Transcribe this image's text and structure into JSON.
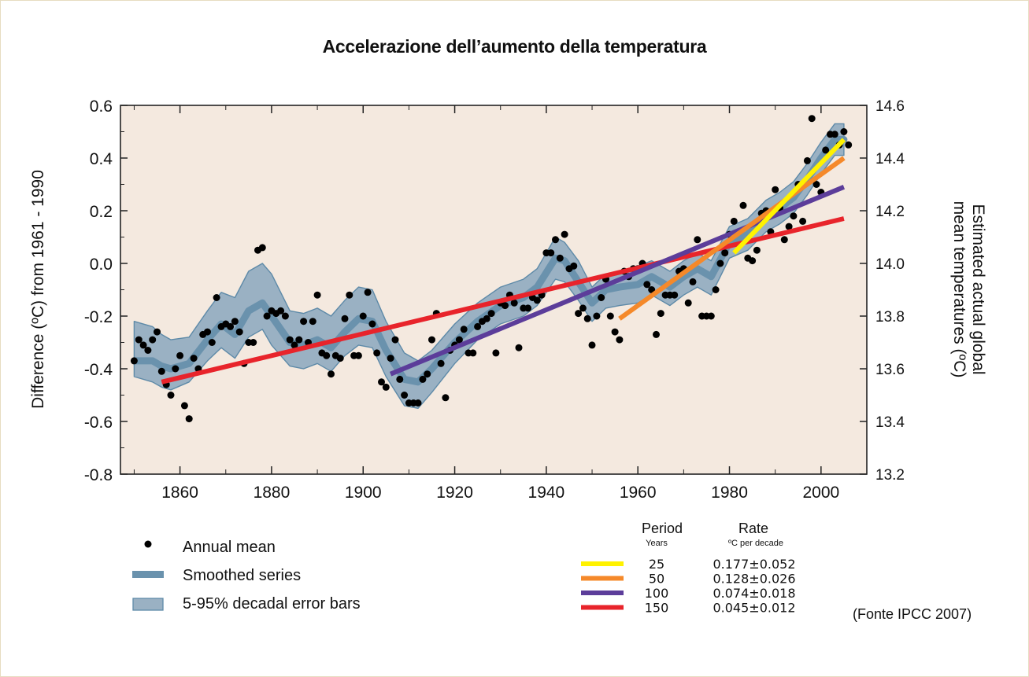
{
  "title": "Accelerazione dell’aumento della temperatura",
  "source_note": "(Fonte IPCC 2007)",
  "chart_data": {
    "type": "scatter",
    "ylabel": "Difference (ºC) from 1961 - 1990",
    "y2label_line1": "Estimated actual global",
    "y2label_line2": "mean temperatures (ºC)",
    "xlim": [
      1847,
      2010
    ],
    "ylim": [
      -0.8,
      0.6
    ],
    "y2lim": [
      13.2,
      14.6
    ],
    "x_ticks": [
      1860,
      1880,
      1900,
      1920,
      1940,
      1960,
      1980,
      2000
    ],
    "y_ticks": [
      "0.6",
      "0.4",
      "0.2",
      "0.0",
      "-0.2",
      "-0.4",
      "-0.6",
      "-0.8"
    ],
    "y2_ticks": [
      "14.6",
      "14.4",
      "14.2",
      "14.0",
      "13.8",
      "13.6",
      "13.4",
      "13.2"
    ],
    "plot_background": "#f4e9df",
    "series": [
      {
        "name": "Annual mean",
        "kind": "points",
        "color": "#000000",
        "x": [
          1850,
          1851,
          1852,
          1853,
          1854,
          1855,
          1856,
          1857,
          1858,
          1859,
          1860,
          1861,
          1862,
          1863,
          1864,
          1865,
          1866,
          1867,
          1868,
          1869,
          1870,
          1871,
          1872,
          1873,
          1874,
          1875,
          1876,
          1877,
          1878,
          1879,
          1880,
          1881,
          1882,
          1883,
          1884,
          1885,
          1886,
          1887,
          1888,
          1889,
          1890,
          1891,
          1892,
          1893,
          1894,
          1895,
          1896,
          1897,
          1898,
          1899,
          1900,
          1901,
          1902,
          1903,
          1904,
          1905,
          1906,
          1907,
          1908,
          1909,
          1910,
          1911,
          1912,
          1913,
          1914,
          1915,
          1916,
          1917,
          1918,
          1919,
          1920,
          1921,
          1922,
          1923,
          1924,
          1925,
          1926,
          1927,
          1928,
          1929,
          1930,
          1931,
          1932,
          1933,
          1934,
          1935,
          1936,
          1937,
          1938,
          1939,
          1940,
          1941,
          1942,
          1943,
          1944,
          1945,
          1946,
          1947,
          1948,
          1949,
          1950,
          1951,
          1952,
          1953,
          1954,
          1955,
          1956,
          1957,
          1958,
          1959,
          1960,
          1961,
          1962,
          1963,
          1964,
          1965,
          1966,
          1967,
          1968,
          1969,
          1970,
          1971,
          1972,
          1973,
          1974,
          1975,
          1976,
          1977,
          1978,
          1979,
          1980,
          1981,
          1982,
          1983,
          1984,
          1985,
          1986,
          1987,
          1988,
          1989,
          1990,
          1991,
          1992,
          1993,
          1994,
          1995,
          1996,
          1997,
          1998,
          1999,
          2000,
          2001,
          2002,
          2003,
          2004,
          2005,
          2006
        ],
        "y": [
          -0.37,
          -0.29,
          -0.31,
          -0.33,
          -0.29,
          -0.26,
          -0.41,
          -0.46,
          -0.5,
          -0.4,
          -0.35,
          -0.54,
          -0.59,
          -0.36,
          -0.4,
          -0.27,
          -0.26,
          -0.3,
          -0.13,
          -0.24,
          -0.23,
          -0.24,
          -0.22,
          -0.26,
          -0.38,
          -0.3,
          -0.3,
          0.05,
          0.06,
          -0.2,
          -0.18,
          -0.19,
          -0.18,
          -0.2,
          -0.29,
          -0.31,
          -0.29,
          -0.22,
          -0.3,
          -0.22,
          -0.12,
          -0.34,
          -0.35,
          -0.42,
          -0.35,
          -0.36,
          -0.21,
          -0.12,
          -0.35,
          -0.35,
          -0.2,
          -0.11,
          -0.23,
          -0.34,
          -0.45,
          -0.47,
          -0.36,
          -0.29,
          -0.44,
          -0.5,
          -0.53,
          -0.53,
          -0.53,
          -0.44,
          -0.42,
          -0.29,
          -0.19,
          -0.38,
          -0.51,
          -0.33,
          -0.31,
          -0.29,
          -0.25,
          -0.34,
          -0.34,
          -0.24,
          -0.22,
          -0.21,
          -0.19,
          -0.34,
          -0.15,
          -0.16,
          -0.12,
          -0.15,
          -0.32,
          -0.17,
          -0.17,
          -0.13,
          -0.14,
          -0.12,
          0.04,
          0.04,
          0.09,
          0.02,
          0.11,
          -0.02,
          -0.01,
          -0.19,
          -0.17,
          -0.21,
          -0.31,
          -0.2,
          -0.13,
          -0.06,
          -0.2,
          -0.26,
          -0.29,
          -0.03,
          -0.05,
          -0.02,
          -0.02,
          0.0,
          -0.08,
          -0.1,
          -0.27,
          -0.19,
          -0.12,
          -0.12,
          -0.12,
          -0.03,
          -0.02,
          -0.15,
          -0.07,
          0.09,
          -0.2,
          -0.2,
          -0.2,
          -0.1,
          0.0,
          0.04,
          0.11,
          0.16,
          0.12,
          0.22,
          0.02,
          0.01,
          0.05,
          0.19,
          0.2,
          0.12,
          0.28,
          0.21,
          0.09,
          0.14,
          0.18,
          0.3,
          0.16,
          0.39,
          0.55,
          0.3,
          0.27,
          0.43,
          0.49,
          0.49,
          0.45,
          0.5,
          0.45
        ]
      },
      {
        "name": "Smoothed series",
        "kind": "line",
        "color": "#6a92ad",
        "x": [
          1850,
          1854,
          1856,
          1858,
          1862,
          1866,
          1869,
          1872,
          1875,
          1878,
          1880,
          1884,
          1887,
          1890,
          1893,
          1896,
          1899,
          1902,
          1905,
          1909,
          1912,
          1915,
          1920,
          1925,
          1930,
          1935,
          1938,
          1942,
          1944,
          1947,
          1950,
          1953,
          1956,
          1960,
          1963,
          1967,
          1970,
          1973,
          1976,
          1980,
          1984,
          1988,
          1991,
          1994,
          1997,
          2000,
          2003,
          2005
        ],
        "y": [
          -0.37,
          -0.37,
          -0.39,
          -0.4,
          -0.38,
          -0.29,
          -0.23,
          -0.27,
          -0.18,
          -0.15,
          -0.2,
          -0.3,
          -0.31,
          -0.29,
          -0.32,
          -0.26,
          -0.21,
          -0.22,
          -0.33,
          -0.44,
          -0.45,
          -0.4,
          -0.3,
          -0.22,
          -0.16,
          -0.13,
          -0.09,
          0.02,
          0.01,
          -0.07,
          -0.15,
          -0.1,
          -0.09,
          -0.08,
          -0.05,
          -0.09,
          -0.05,
          -0.02,
          -0.05,
          0.08,
          0.11,
          0.18,
          0.21,
          0.25,
          0.32,
          0.4,
          0.47,
          0.47
        ]
      },
      {
        "name": "5-95% decadal error bars",
        "kind": "band",
        "color": "#9ab1c3",
        "edge_color": "#5e8aa8",
        "x": [
          1850,
          1854,
          1856,
          1858,
          1862,
          1866,
          1869,
          1872,
          1875,
          1878,
          1880,
          1884,
          1887,
          1890,
          1893,
          1896,
          1899,
          1902,
          1905,
          1909,
          1912,
          1915,
          1920,
          1925,
          1930,
          1935,
          1938,
          1942,
          1944,
          1947,
          1950,
          1953,
          1956,
          1960,
          1963,
          1967,
          1970,
          1973,
          1976,
          1980,
          1984,
          1988,
          1991,
          1994,
          1997,
          2000,
          2003,
          2005
        ],
        "upper": [
          -0.22,
          -0.24,
          -0.27,
          -0.29,
          -0.28,
          -0.18,
          -0.11,
          -0.13,
          -0.03,
          0.0,
          -0.04,
          -0.18,
          -0.19,
          -0.17,
          -0.2,
          -0.14,
          -0.09,
          -0.1,
          -0.22,
          -0.34,
          -0.37,
          -0.33,
          -0.23,
          -0.15,
          -0.09,
          -0.06,
          -0.02,
          0.1,
          0.08,
          0.01,
          -0.09,
          -0.04,
          -0.03,
          -0.01,
          0.01,
          -0.03,
          0.01,
          0.04,
          0.01,
          0.14,
          0.17,
          0.24,
          0.27,
          0.31,
          0.38,
          0.46,
          0.53,
          0.53
        ],
        "lower": [
          -0.43,
          -0.45,
          -0.47,
          -0.48,
          -0.45,
          -0.37,
          -0.32,
          -0.36,
          -0.28,
          -0.25,
          -0.31,
          -0.39,
          -0.4,
          -0.38,
          -0.41,
          -0.35,
          -0.31,
          -0.32,
          -0.43,
          -0.54,
          -0.55,
          -0.49,
          -0.38,
          -0.29,
          -0.23,
          -0.2,
          -0.16,
          -0.06,
          -0.07,
          -0.14,
          -0.22,
          -0.17,
          -0.16,
          -0.15,
          -0.12,
          -0.16,
          -0.12,
          -0.09,
          -0.12,
          0.02,
          0.05,
          0.12,
          0.15,
          0.19,
          0.26,
          0.34,
          0.41,
          0.41
        ]
      },
      {
        "name": "150",
        "kind": "trend",
        "color": "#e8242b",
        "x": [
          1856,
          2005
        ],
        "y": [
          -0.45,
          0.17
        ]
      },
      {
        "name": "100",
        "kind": "trend",
        "color": "#5c3d9a",
        "x": [
          1906,
          2005
        ],
        "y": [
          -0.42,
          0.29
        ]
      },
      {
        "name": "50",
        "kind": "trend",
        "color": "#f5892a",
        "x": [
          1956,
          2005
        ],
        "y": [
          -0.21,
          0.4
        ]
      },
      {
        "name": "25",
        "kind": "trend",
        "color": "#fff200",
        "x": [
          1981,
          2005
        ],
        "y": [
          0.04,
          0.47
        ]
      }
    ],
    "legend": [
      {
        "label": "Annual mean",
        "type": "dot"
      },
      {
        "label": "Smoothed series",
        "type": "line"
      },
      {
        "label": "5-95% decadal error bars",
        "type": "band"
      }
    ],
    "rate_table": {
      "header_period": "Period",
      "header_rate": "Rate",
      "sub_period": "Years",
      "sub_rate": "ºC  per decade",
      "rows": [
        {
          "period": "25",
          "rate": "0.177±0.052",
          "color": "#fff200"
        },
        {
          "period": "50",
          "rate": "0.128±0.026",
          "color": "#f5892a"
        },
        {
          "period": "100",
          "rate": "0.074±0.018",
          "color": "#5c3d9a"
        },
        {
          "period": "150",
          "rate": "0.045±0.012",
          "color": "#e8242b"
        }
      ]
    }
  }
}
